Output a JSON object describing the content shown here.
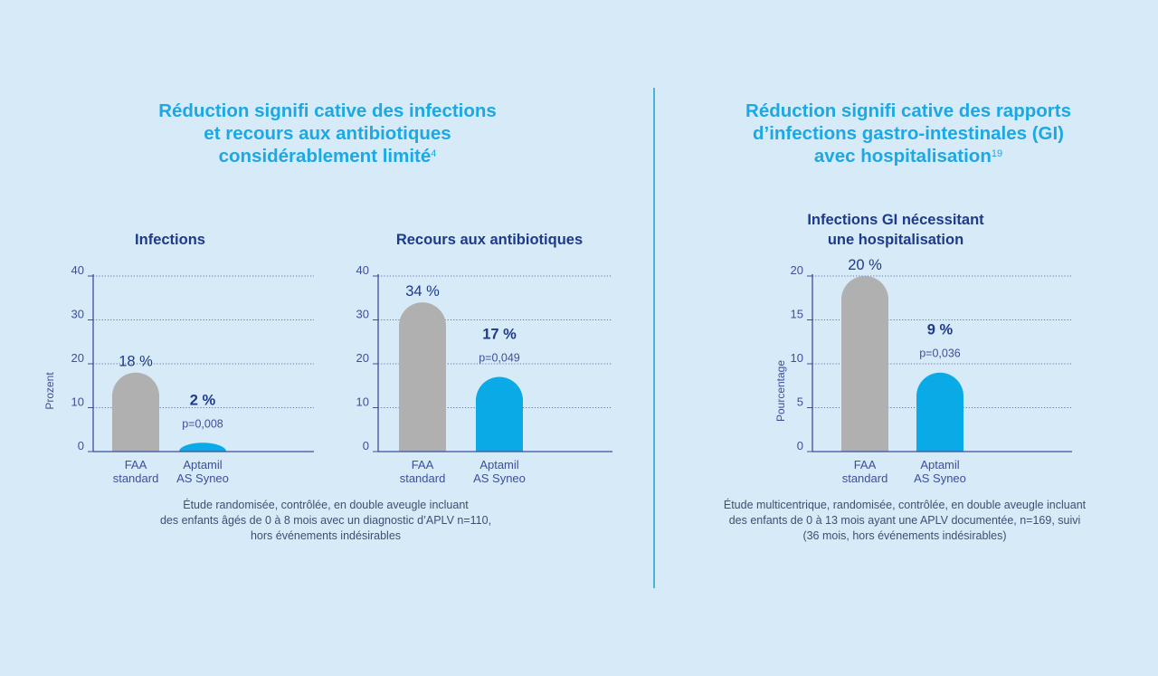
{
  "left_section": {
    "heading_lines": [
      "Réduction signifi cative des infections",
      "et recours aux antibiotiques",
      "considérablement limité"
    ],
    "heading_ref": "4",
    "footnote_lines": [
      "Étude randomisée, contrôlée, en double aveugle incluant",
      "des enfants âgés de 0 à 8 mois avec un diagnostic d’APLV n=110,",
      "hors événements indésirables"
    ]
  },
  "right_section": {
    "heading_lines": [
      "Réduction signifi cative des rapports",
      "d’infections gastro-intestinales (GI)",
      "avec hospitalisation"
    ],
    "heading_ref": "19",
    "footnote_lines": [
      "Étude multicentrique, randomisée, contrôlée, en double aveugle incluant",
      "des enfants de 0 à 13 mois ayant une APLV documentée, n=169, suivi",
      "(36 mois, hors événements indésirables)"
    ]
  },
  "colors": {
    "standard_bar": "#b0b0b0",
    "aptamil_bar": "#0aaae6",
    "axis": "#3d4f9a",
    "text_dark": "#1e3a8a",
    "tick_label": "#3d4f9a"
  },
  "chart_data": [
    {
      "type": "bar",
      "title": "Infections",
      "ylabel": "Prozent",
      "ylim": [
        0,
        40
      ],
      "yticks": [
        0,
        10,
        20,
        30,
        40
      ],
      "grid": true,
      "categories": [
        "FAA standard",
        "Aptamil AS Syneo"
      ],
      "category_lines": [
        [
          "FAA",
          "standard"
        ],
        [
          "Aptamil",
          "AS Syneo"
        ]
      ],
      "values": [
        18,
        2
      ],
      "value_labels": [
        "18 %",
        "2 %"
      ],
      "pvalue_labels": [
        "",
        "p=0,008"
      ]
    },
    {
      "type": "bar",
      "title": "Recours aux antibiotiques",
      "ylabel": "",
      "ylim": [
        0,
        40
      ],
      "yticks": [
        0,
        10,
        20,
        30,
        40
      ],
      "grid": true,
      "categories": [
        "FAA standard",
        "Aptamil AS Syneo"
      ],
      "category_lines": [
        [
          "FAA",
          "standard"
        ],
        [
          "Aptamil",
          "AS Syneo"
        ]
      ],
      "values": [
        34,
        17
      ],
      "value_labels": [
        "34 %",
        "17 %"
      ],
      "pvalue_labels": [
        "",
        "p=0,049"
      ]
    },
    {
      "type": "bar",
      "title": "Infections GI nécessitant une hospitalisation",
      "title_lines": [
        "Infections GI nécessitant",
        "une hospitalisation"
      ],
      "ylabel": "Pourcentage",
      "ylim": [
        0,
        20
      ],
      "yticks": [
        0,
        5,
        10,
        15,
        20
      ],
      "grid": true,
      "categories": [
        "FAA standard",
        "Aptamil AS Syneo"
      ],
      "category_lines": [
        [
          "FAA",
          "standard"
        ],
        [
          "Aptamil",
          "AS Syneo"
        ]
      ],
      "values": [
        20,
        9
      ],
      "value_labels": [
        "20 %",
        "9 %"
      ],
      "pvalue_labels": [
        "",
        "p=0,036"
      ]
    }
  ]
}
